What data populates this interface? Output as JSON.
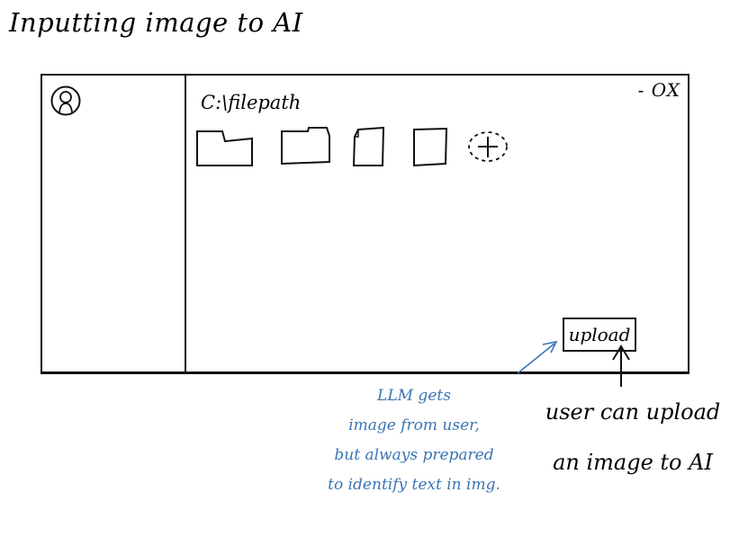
{
  "title": "Inputting image to AI",
  "window": {
    "controls": "—  □  X",
    "controls_text": "- OX",
    "filepath": "C:\\filepath",
    "files": [
      {
        "kind": "folder",
        "icon": "folder-icon"
      },
      {
        "kind": "folder",
        "icon": "folder-icon"
      },
      {
        "kind": "document",
        "icon": "document-icon"
      },
      {
        "kind": "document",
        "icon": "document-icon"
      },
      {
        "kind": "add",
        "icon": "add-circle-icon"
      }
    ],
    "upload_label": "upload",
    "avatar_icon": "user-avatar-icon"
  },
  "annotations": {
    "user_note": [
      "user can upload",
      "an image to AI"
    ],
    "llm_note": [
      "LLM gets",
      "image from user,",
      "but always prepared",
      "to identify text in img."
    ],
    "llm_note_color": "#3a75b4"
  }
}
